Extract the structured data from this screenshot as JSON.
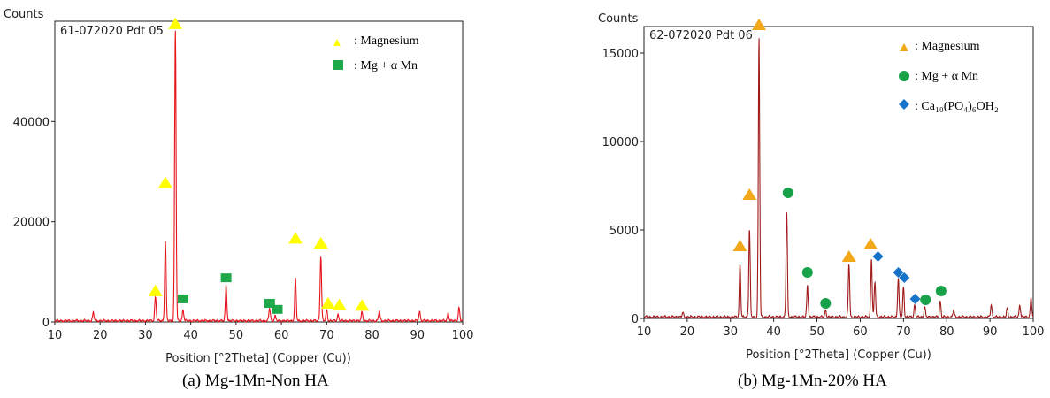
{
  "chart_data": [
    {
      "type": "line",
      "ylabel": "Counts",
      "xlabel": "Position [°2Theta] (Copper (Cu))",
      "pattern_label": "61-072020 Pdt 05",
      "caption": "(a) Mg-1Mn-Non HA",
      "line_color": "#e8141c",
      "xlim": [
        10,
        100
      ],
      "ylim": [
        0,
        60000
      ],
      "x_ticks": [
        10,
        20,
        30,
        40,
        50,
        60,
        70,
        80,
        90,
        100
      ],
      "y_ticks": [
        0,
        20000,
        40000
      ],
      "y_tick_labels": [
        "0",
        "20000",
        "40000"
      ],
      "peaks": [
        [
          18.5,
          1600
        ],
        [
          32.2,
          4800
        ],
        [
          34.4,
          16200
        ],
        [
          36.6,
          58000
        ],
        [
          38.3,
          2200
        ],
        [
          47.8,
          7200
        ],
        [
          57.4,
          2500
        ],
        [
          58.6,
          1000
        ],
        [
          63.1,
          8500
        ],
        [
          68.7,
          13000
        ],
        [
          70.0,
          2200
        ],
        [
          72.5,
          1200
        ],
        [
          77.8,
          1700
        ],
        [
          81.6,
          2000
        ],
        [
          90.5,
          1800
        ],
        [
          96.8,
          1500
        ],
        [
          99.2,
          2600
        ]
      ],
      "noise_level": 250,
      "legend": [
        {
          "marker": "triangle",
          "color": "#ffff00",
          "label": ": Magnesium"
        },
        {
          "marker": "square",
          "color": "#1ea84a",
          "label": ": Mg + α Mn"
        }
      ],
      "markers": [
        {
          "type": "triangle",
          "x": 32.2,
          "y": 6200
        },
        {
          "type": "triangle",
          "x": 34.4,
          "y": 27800
        },
        {
          "type": "triangle",
          "x": 36.6,
          "y": 59500
        },
        {
          "type": "triangle",
          "x": 63.1,
          "y": 16700
        },
        {
          "type": "triangle",
          "x": 68.7,
          "y": 15700
        },
        {
          "type": "triangle",
          "x": 70.3,
          "y": 3700
        },
        {
          "type": "triangle",
          "x": 72.8,
          "y": 3400
        },
        {
          "type": "triangle",
          "x": 77.8,
          "y": 3300
        },
        {
          "type": "square",
          "x": 38.3,
          "y": 4600
        },
        {
          "type": "square",
          "x": 47.8,
          "y": 8800
        },
        {
          "type": "square",
          "x": 57.4,
          "y": 3700
        },
        {
          "type": "square",
          "x": 59.1,
          "y": 2500
        }
      ]
    },
    {
      "type": "line",
      "ylabel": "Counts",
      "xlabel": "Position [°2Theta] (Copper (Cu))",
      "pattern_label": "62-072020 Pdt 06",
      "caption": "(b) Mg-1Mn-20% HA",
      "line_color": "#a01a1a",
      "xlim": [
        10,
        100
      ],
      "ylim": [
        0,
        16500
      ],
      "x_ticks": [
        10,
        20,
        30,
        40,
        50,
        60,
        70,
        80,
        90,
        100
      ],
      "y_ticks": [
        0,
        5000,
        10000,
        15000
      ],
      "y_tick_labels": [
        "0",
        "5000",
        "10000",
        "15000"
      ],
      "peaks": [
        [
          19.0,
          250
        ],
        [
          32.2,
          3000
        ],
        [
          34.4,
          5000
        ],
        [
          36.6,
          15800
        ],
        [
          43.0,
          6000
        ],
        [
          47.8,
          1800
        ],
        [
          52.0,
          400
        ],
        [
          57.4,
          3000
        ],
        [
          62.6,
          3300
        ],
        [
          63.4,
          2000
        ],
        [
          68.8,
          2200
        ],
        [
          70.0,
          1700
        ],
        [
          72.6,
          700
        ],
        [
          74.9,
          600
        ],
        [
          78.5,
          900
        ],
        [
          81.6,
          400
        ],
        [
          90.3,
          700
        ],
        [
          94.0,
          500
        ],
        [
          96.9,
          700
        ],
        [
          99.5,
          1100
        ]
      ],
      "noise_level": 80,
      "legend": [
        {
          "marker": "triangle",
          "color": "#f2a818",
          "label": ": Magnesium"
        },
        {
          "marker": "circle",
          "color": "#17a24a",
          "label": ": Mg + α Mn"
        },
        {
          "marker": "diamond",
          "color": "#1673c9",
          "label": ": Ca₁₀(PO₄)₆OH₂"
        }
      ],
      "markers": [
        {
          "type": "triangle",
          "x": 32.2,
          "y": 4100
        },
        {
          "type": "triangle",
          "x": 34.4,
          "y": 7000
        },
        {
          "type": "triangle",
          "x": 36.6,
          "y": 16600
        },
        {
          "type": "triangle",
          "x": 57.4,
          "y": 3500
        },
        {
          "type": "triangle",
          "x": 62.4,
          "y": 4200
        },
        {
          "type": "circle",
          "x": 43.3,
          "y": 7100
        },
        {
          "type": "circle",
          "x": 47.8,
          "y": 2600
        },
        {
          "type": "circle",
          "x": 52.0,
          "y": 850
        },
        {
          "type": "circle",
          "x": 75.1,
          "y": 1050
        },
        {
          "type": "circle",
          "x": 78.7,
          "y": 1550
        },
        {
          "type": "diamond",
          "x": 64.1,
          "y": 3500
        },
        {
          "type": "diamond",
          "x": 68.8,
          "y": 2600
        },
        {
          "type": "diamond",
          "x": 70.2,
          "y": 2300
        },
        {
          "type": "diamond",
          "x": 72.7,
          "y": 1100
        }
      ]
    }
  ]
}
